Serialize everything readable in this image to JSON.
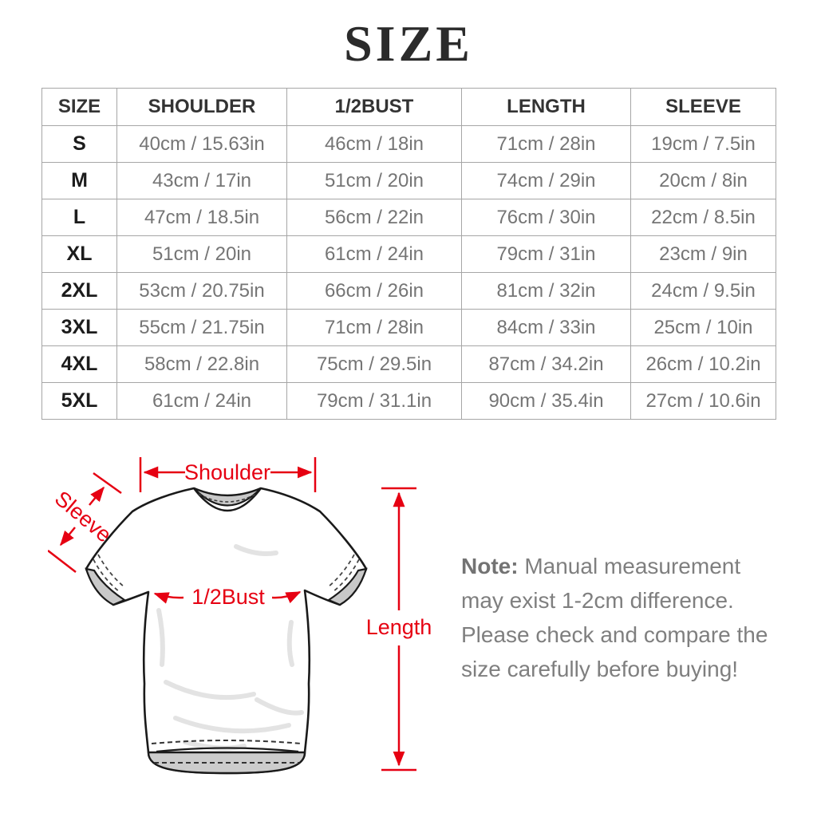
{
  "title": "SIZE",
  "table": {
    "columns": [
      "SIZE",
      "SHOULDER",
      "1/2BUST",
      "LENGTH",
      "SLEEVE"
    ],
    "rows": [
      [
        "S",
        "40cm / 15.63in",
        "46cm / 18in",
        "71cm / 28in",
        "19cm / 7.5in"
      ],
      [
        "M",
        "43cm / 17in",
        "51cm / 20in",
        "74cm / 29in",
        "20cm / 8in"
      ],
      [
        "L",
        "47cm / 18.5in",
        "56cm / 22in",
        "76cm / 30in",
        "22cm / 8.5in"
      ],
      [
        "XL",
        "51cm / 20in",
        "61cm / 24in",
        "79cm / 31in",
        "23cm / 9in"
      ],
      [
        "2XL",
        "53cm / 20.75in",
        "66cm / 26in",
        "81cm / 32in",
        "24cm / 9.5in"
      ],
      [
        "3XL",
        "55cm / 21.75in",
        "71cm / 28in",
        "84cm / 33in",
        "25cm / 10in"
      ],
      [
        "4XL",
        "58cm / 22.8in",
        "75cm / 29.5in",
        "87cm / 34.2in",
        "26cm / 10.2in"
      ],
      [
        "5XL",
        "61cm / 24in",
        "79cm / 31.1in",
        "90cm / 35.4in",
        "27cm / 10.6in"
      ]
    ]
  },
  "diagram": {
    "labels": {
      "shoulder": "Shoulder",
      "sleeve": "Sleeve",
      "bust": "1/2Bust",
      "length": "Length"
    },
    "accent_color": "#e60012"
  },
  "note": {
    "prefix": "Note:",
    "body": " Manual measurement may exist 1-2cm difference. Please check and compare the size carefully before buying!"
  }
}
